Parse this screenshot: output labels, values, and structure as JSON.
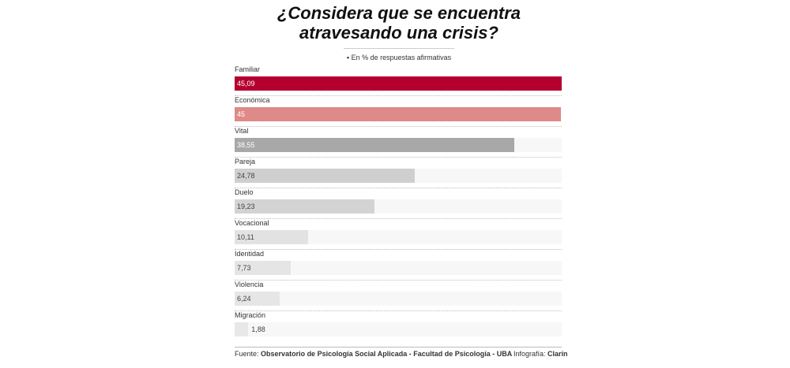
{
  "chart_data": {
    "type": "bar",
    "orientation": "horizontal",
    "title": "¿Considera que se encuentra atravesando una crisis?",
    "subtitle": "▪ En % de respuestas afirmativas",
    "categories": [
      "Familiar",
      "Económica",
      "Vital",
      "Pareja",
      "Duelo",
      "Vocacional",
      "Identidad",
      "Violencia",
      "Migración"
    ],
    "values": [
      45.09,
      45,
      38.55,
      24.78,
      19.23,
      10.11,
      7.73,
      6.24,
      1.88
    ],
    "value_labels": [
      "45,09",
      "45",
      "38,55",
      "24,78",
      "19,23",
      "10,11",
      "7,73",
      "6,24",
      "1,88"
    ],
    "colors": [
      "#b5002f",
      "#de8a88",
      "#a8a8a8",
      "#cfcfcf",
      "#d3d3d3",
      "#e2e2e2",
      "#e5e5e5",
      "#e6e6e6",
      "#e8e8e8"
    ],
    "value_label_colors": [
      "#ffffff",
      "#ffffff",
      "#ffffff",
      "#444444",
      "#444444",
      "#444444",
      "#444444",
      "#444444",
      "#444444"
    ],
    "xlim": [
      0,
      45.09
    ],
    "source_label": "Fuente:",
    "source": "Observatorio de Psicología Social Aplicada - Facultad de Psicología - UBA",
    "credit_label": "Infografía:",
    "credit": "Clarín"
  }
}
